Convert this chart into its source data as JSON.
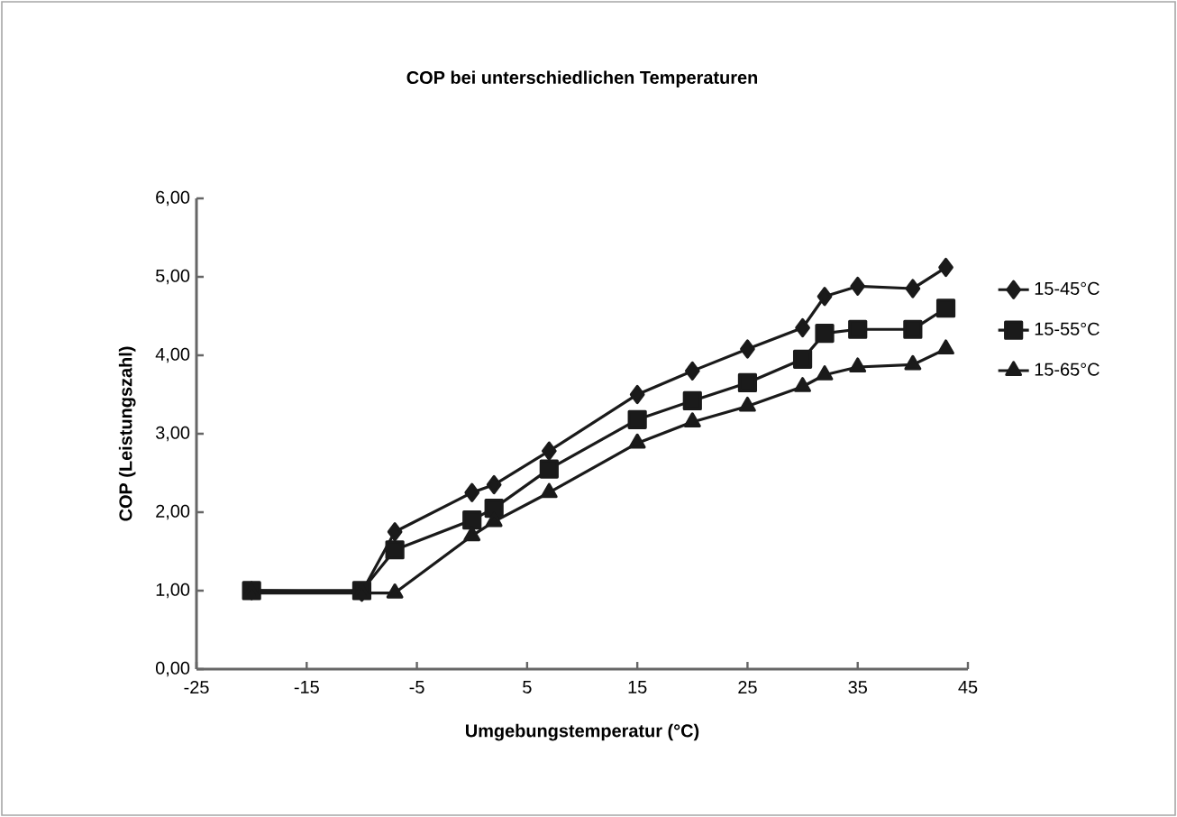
{
  "chart_data": {
    "type": "line",
    "title": "COP bei unterschiedlichen Temperaturen",
    "xlabel": "Umgebungstemperatur (°C)",
    "ylabel": "COP (Leistungszahl)",
    "x": [
      -20,
      -10,
      -7,
      0,
      2,
      7,
      15,
      20,
      25,
      30,
      32,
      35,
      40,
      43
    ],
    "series": [
      {
        "name": "15-45°C",
        "color": "#1a1a1a",
        "marker": "diamond",
        "values": [
          1.0,
          0.98,
          1.75,
          2.25,
          2.35,
          2.78,
          3.5,
          3.8,
          4.08,
          4.35,
          4.75,
          4.88,
          4.85,
          5.12
        ]
      },
      {
        "name": "15-55°C",
        "color": "#1a1a1a",
        "marker": "square",
        "values": [
          1.0,
          1.0,
          1.52,
          1.9,
          2.05,
          2.55,
          3.18,
          3.42,
          3.65,
          3.95,
          4.28,
          4.33,
          4.33,
          4.6
        ]
      },
      {
        "name": "15-65°C",
        "color": "#1a1a1a",
        "marker": "triangle",
        "values": [
          0.97,
          0.97,
          0.97,
          1.7,
          1.88,
          2.25,
          2.88,
          3.15,
          3.35,
          3.6,
          3.75,
          3.85,
          3.88,
          4.08
        ]
      }
    ],
    "xlim": [
      -25,
      45
    ],
    "xticks": [
      -25,
      -15,
      -5,
      5,
      15,
      25,
      35,
      45
    ],
    "ylim": [
      0,
      6
    ],
    "yticks": [
      {
        "value": 0,
        "label": "0,00"
      },
      {
        "value": 1,
        "label": "1,00"
      },
      {
        "value": 2,
        "label": "2,00"
      },
      {
        "value": 3,
        "label": "3,00"
      },
      {
        "value": 4,
        "label": "4,00"
      },
      {
        "value": 5,
        "label": "5,00"
      },
      {
        "value": 6,
        "label": "6,00"
      }
    ],
    "grid": false,
    "legend": "right",
    "line_style": "solid"
  }
}
